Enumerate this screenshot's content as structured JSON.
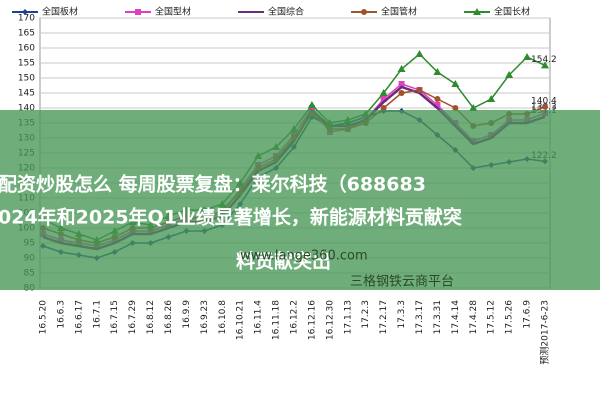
{
  "chart_data": {
    "type": "line",
    "categories": [
      "16.5.20",
      "16.6.3",
      "16.6.17",
      "16.7.1",
      "16.7.15",
      "16.7.29",
      "16.8.12",
      "16.8.26",
      "16.9.9",
      "16.9.23",
      "16.10.8",
      "16.10.21",
      "16.11.4",
      "16.11.18",
      "16.12.2",
      "16.12.16",
      "16.12.30",
      "17.1.13",
      "17.2.3",
      "17.2.17",
      "17.3.3",
      "17.3.17",
      "17.3.31",
      "17.4.14",
      "17.4.28",
      "17.5.12",
      "17.5.26",
      "17.6.9",
      "预测2017-6-23"
    ],
    "series": [
      {
        "name": "全国板材",
        "color": "#1f3f8f",
        "marker": "diamond",
        "values": [
          94,
          92,
          91,
          90,
          92,
          95,
          95,
          97,
          99,
          99,
          101,
          108,
          117,
          120,
          127,
          137,
          134,
          135,
          137,
          139,
          139,
          136,
          131,
          126,
          120,
          121,
          122,
          123,
          122.2
        ]
      },
      {
        "name": "全国型材",
        "color": "#e040c0",
        "marker": "square",
        "values": [
          98,
          96,
          95,
          94,
          96,
          99,
          99,
          101,
          103,
          103,
          105,
          113,
          121,
          124,
          131,
          140,
          132,
          133,
          136,
          143,
          148,
          146,
          141,
          135,
          129,
          131,
          136,
          136,
          138.3
        ]
      },
      {
        "name": "全国综合",
        "color": "#6a2a7a",
        "marker": "none",
        "values": [
          97,
          95,
          94,
          93,
          95,
          98,
          98,
          100,
          102,
          102,
          104,
          111,
          119,
          122,
          129,
          139,
          134,
          134,
          136,
          142,
          147,
          145,
          140,
          134,
          128,
          130,
          135,
          135,
          137.1
        ]
      },
      {
        "name": "全国管材",
        "color": "#a0522d",
        "marker": "circle",
        "values": [
          100,
          98,
          96,
          95,
          97,
          100,
          100,
          102,
          104,
          103,
          106,
          112,
          120,
          123,
          130,
          138,
          133,
          133,
          135,
          140,
          145,
          146,
          143,
          140,
          134,
          135,
          138,
          138,
          140.4
        ]
      },
      {
        "name": "全国长材",
        "color": "#2e8b2e",
        "marker": "triangle",
        "values": [
          103,
          100,
          98,
          96,
          99,
          102,
          101,
          104,
          106,
          106,
          108,
          115,
          124,
          127,
          133,
          141,
          135,
          136,
          138,
          145,
          153,
          158,
          152,
          148,
          140,
          143,
          151,
          157,
          154.2
        ]
      }
    ],
    "ylim": [
      80,
      170
    ],
    "yticks": [
      80,
      85,
      90,
      95,
      100,
      105,
      110,
      115,
      120,
      125,
      130,
      135,
      140,
      145,
      150,
      155,
      160,
      165,
      170
    ],
    "grid": true,
    "legend": "top"
  },
  "overlay": {
    "headline": [
      "配资炒股怎么 每周股票复盘：莱尔科技（688683",
      "024年和2025年Q1业绩显著增长，新能源材料贡献突",
      "料贡献突出"
    ],
    "watermark": [
      "www.lange360.com",
      "三格钢铁云商平台"
    ]
  }
}
